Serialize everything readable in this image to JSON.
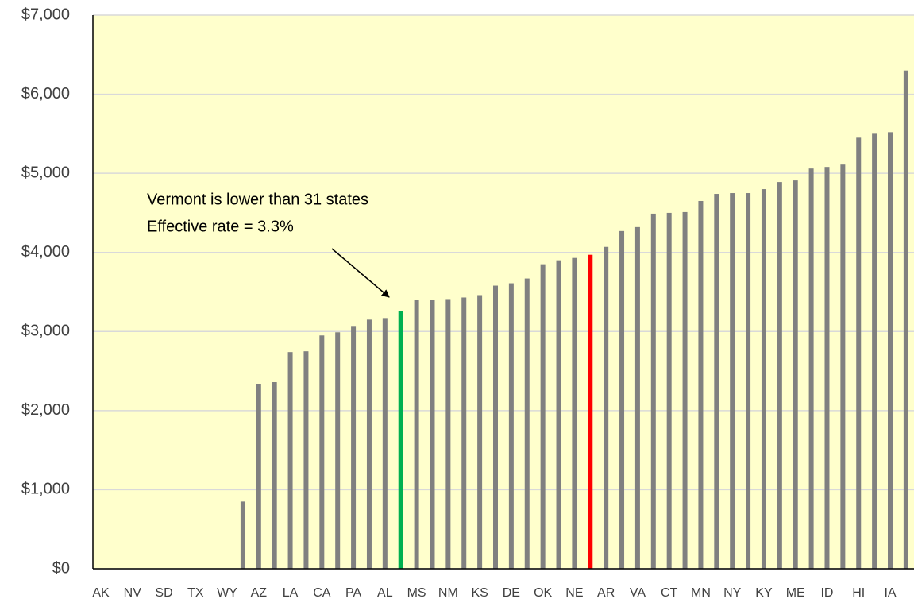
{
  "chart_data": {
    "type": "bar",
    "categories": [
      "AK",
      null,
      "NV",
      null,
      "SD",
      null,
      "TX",
      null,
      "WY",
      null,
      "AZ",
      null,
      "LA",
      null,
      "CA",
      null,
      "PA",
      null,
      "AL",
      null,
      "MS",
      null,
      "NM",
      null,
      "KS",
      null,
      "DE",
      null,
      "OK",
      null,
      "NE",
      null,
      "AR",
      null,
      "VA",
      null,
      "CT",
      null,
      "MN",
      null,
      "NY",
      null,
      "KY",
      null,
      "ME",
      null,
      "ID",
      null,
      "HI",
      null,
      "IA",
      null
    ],
    "values": [
      0,
      0,
      0,
      0,
      0,
      0,
      0,
      0,
      0,
      850,
      2340,
      2360,
      2740,
      2750,
      2950,
      2990,
      3070,
      3150,
      3170,
      3260,
      3400,
      3400,
      3410,
      3430,
      3460,
      3580,
      3610,
      3670,
      3850,
      3900,
      3930,
      3970,
      4070,
      4270,
      4320,
      4490,
      4500,
      4510,
      4650,
      4740,
      4750,
      4750,
      4800,
      4890,
      4910,
      5060,
      5080,
      5110,
      5450,
      5500,
      5520,
      6300
    ],
    "colors": [
      "#808080",
      "#808080",
      "#808080",
      "#808080",
      "#808080",
      "#808080",
      "#808080",
      "#808080",
      "#808080",
      "#808080",
      "#808080",
      "#808080",
      "#808080",
      "#808080",
      "#808080",
      "#808080",
      "#808080",
      "#808080",
      "#808080",
      "#00b050",
      "#808080",
      "#808080",
      "#808080",
      "#808080",
      "#808080",
      "#808080",
      "#808080",
      "#808080",
      "#808080",
      "#808080",
      "#808080",
      "#ff0000",
      "#808080",
      "#808080",
      "#808080",
      "#808080",
      "#808080",
      "#808080",
      "#808080",
      "#808080",
      "#808080",
      "#808080",
      "#808080",
      "#808080",
      "#808080",
      "#808080",
      "#808080",
      "#808080",
      "#808080",
      "#808080",
      "#808080",
      "#808080"
    ],
    "ylim": [
      0,
      7000
    ],
    "yticks": [
      {
        "value": 0,
        "label": "$0"
      },
      {
        "value": 1000,
        "label": "$1,000"
      },
      {
        "value": 2000,
        "label": "$2,000"
      },
      {
        "value": 3000,
        "label": "$3,000"
      },
      {
        "value": 4000,
        "label": "$4,000"
      },
      {
        "value": 5000,
        "label": "$5,000"
      },
      {
        "value": 6000,
        "label": "$6,000"
      },
      {
        "value": 7000,
        "label": "$7,000"
      }
    ],
    "grid": true,
    "annotations": [
      "Vermont is lower than 31 states",
      "Effective rate = 3.3%"
    ]
  }
}
